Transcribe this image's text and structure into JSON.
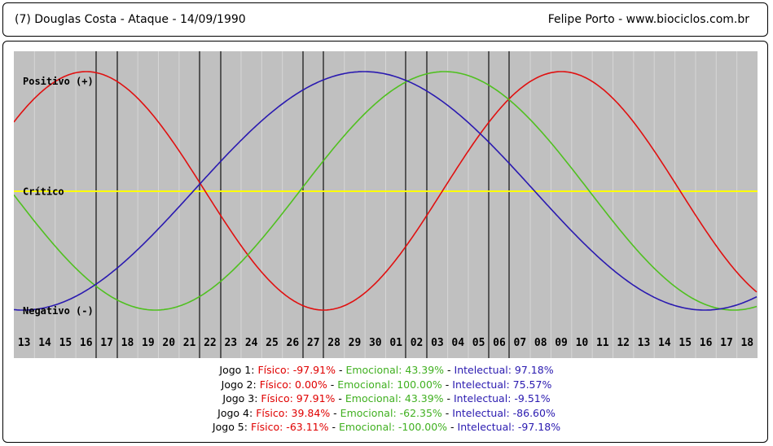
{
  "header": {
    "left_text": "(7)  Douglas Costa - Ataque -  14/09/1990",
    "right_text": "Felipe Porto   -   www.biociclos.com.br"
  },
  "chart_data": {
    "type": "line",
    "y_labels": {
      "positive": "Positivo (+)",
      "critical": "Crítico",
      "negative": "Negativo (-)"
    },
    "x": [
      "13",
      "14",
      "15",
      "16",
      "17",
      "18",
      "19",
      "20",
      "21",
      "22",
      "23",
      "24",
      "25",
      "26",
      "27",
      "28",
      "29",
      "30",
      "01",
      "02",
      "03",
      "04",
      "05",
      "06",
      "07",
      "08",
      "09",
      "10",
      "11",
      "12",
      "13",
      "14",
      "15",
      "16",
      "17",
      "18"
    ],
    "ylim": [
      -100,
      100
    ],
    "grid": true,
    "colors": {
      "background": "#c0c0c0",
      "grid": "#d6d6d6",
      "critical_line": "#ffff00",
      "game_line": "#555555"
    },
    "series": [
      {
        "key": "fisico",
        "color": "#e01010",
        "period": 23,
        "phase_day": 27,
        "min_day": 15.25
      },
      {
        "key": "emocional",
        "color": "#50c020",
        "period": 28,
        "phase_day": 21.35
      },
      {
        "key": "intelectual",
        "color": "#2a1ab0",
        "period": 33,
        "phase_day": 17.45
      }
    ],
    "game_days": [
      16,
      17,
      22,
      23,
      27,
      28,
      19,
      20,
      24,
      25
    ]
  },
  "stats": [
    {
      "label": "Jogo 1: ",
      "fisico": "Físico: -97.91%",
      "emocional": "Emocional: 43.39%",
      "intelectual": "Intelectual: 97.18%"
    },
    {
      "label": "Jogo 2: ",
      "fisico": "Físico: 0.00%",
      "emocional": "Emocional: 100.00%",
      "intelectual": "Intelectual: 75.57%"
    },
    {
      "label": "Jogo 3: ",
      "fisico": "Físico: 97.91%",
      "emocional": "Emocional: 43.39%",
      "intelectual": "Intelectual: -9.51%"
    },
    {
      "label": "Jogo 4: ",
      "fisico": "Físico: 39.84%",
      "emocional": "Emocional: -62.35%",
      "intelectual": "Intelectual: -86.60%"
    },
    {
      "label": "Jogo 5: ",
      "fisico": "Físico: -63.11%",
      "emocional": "Emocional: -100.00%",
      "intelectual": "Intelectual: -97.18%"
    }
  ],
  "separator": " - "
}
